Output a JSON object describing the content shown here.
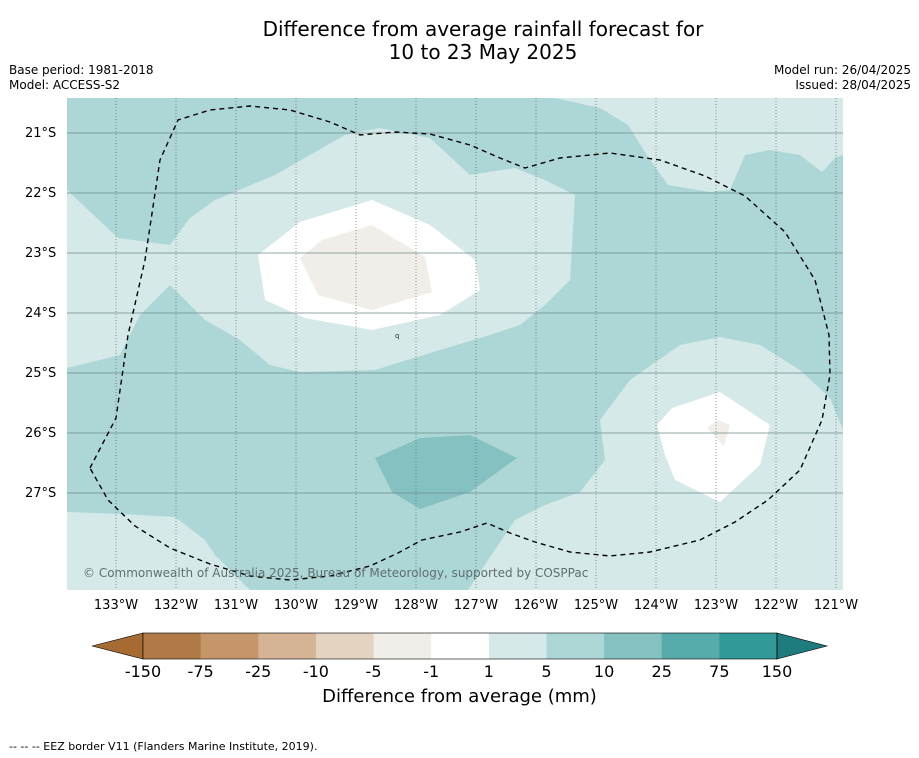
{
  "title_line1": "Difference from average rainfall forecast for",
  "title_line2": "10 to 23 May 2025",
  "base_period": "Base period: 1981-2018",
  "model": "Model: ACCESS-S2",
  "model_run": "Model run: 26/04/2025",
  "issued": "Issued: 28/04/2025",
  "lat_labels": [
    "21°S",
    "22°S",
    "23°S",
    "24°S",
    "25°S",
    "26°S",
    "27°S"
  ],
  "lon_labels": [
    "133°W",
    "132°W",
    "131°W",
    "130°W",
    "129°W",
    "128°W",
    "127°W",
    "126°W",
    "125°W",
    "124°W",
    "123°W",
    "122°W",
    "121°W"
  ],
  "copyright": "© Commonwealth of Australia 2025, Bureau of Meteorology, supported by COSPPac",
  "colorbar": {
    "ticks": [
      "-150",
      "-75",
      "-25",
      "-10",
      "-5",
      "-1",
      "1",
      "5",
      "10",
      "25",
      "75",
      "150"
    ],
    "colors": [
      "#a66a33",
      "#af7a45",
      "#c4966a",
      "#d4b494",
      "#e5d3c1",
      "#f1ede8",
      "#ffffff",
      "#d5e9e9",
      "#add7d7",
      "#86c1c1",
      "#58abab",
      "#329999",
      "#1f7c7c"
    ],
    "title": "Difference from average (mm)"
  },
  "footer": "--  --  -- EEZ border V11 (Flanders Marine Institute, 2019)."
}
